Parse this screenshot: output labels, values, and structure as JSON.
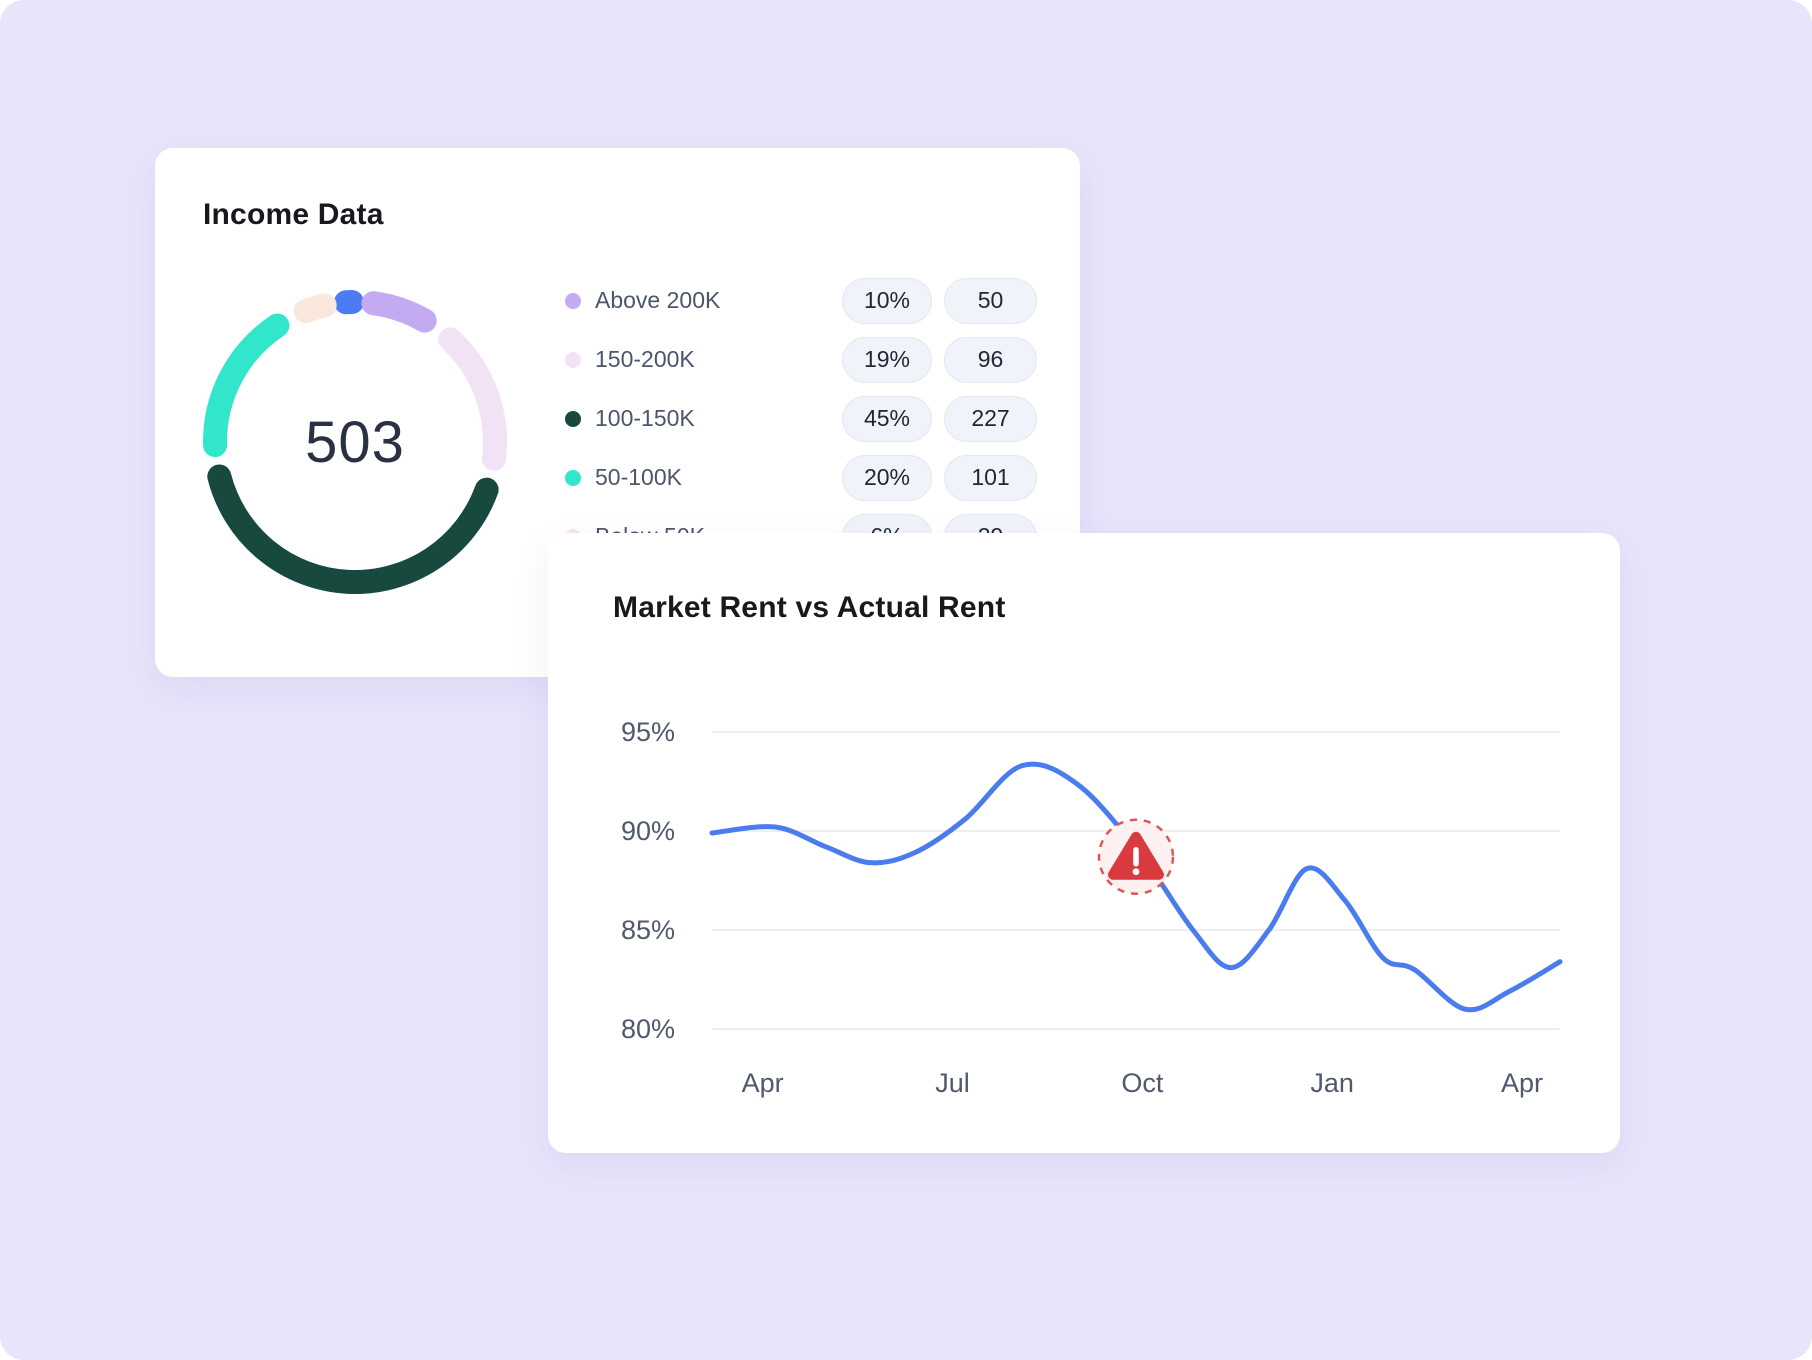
{
  "background": {
    "color": "#E8E4FB"
  },
  "income_card": {
    "title": "Income Data",
    "total": "503",
    "legend": [
      {
        "label": "Above 200K",
        "percent": "10%",
        "count": "50",
        "color": "#C3AAF2"
      },
      {
        "label": "150-200K",
        "percent": "19%",
        "count": "96",
        "color": "#F2E2F5"
      },
      {
        "label": "100-150K",
        "percent": "45%",
        "count": "227",
        "color": "#17493F"
      },
      {
        "label": "50-100K",
        "percent": "20%",
        "count": "101",
        "color": "#31E6CA"
      },
      {
        "label": "Below 50K",
        "percent": "6%",
        "count": "29",
        "color": "#FAE8DC"
      }
    ]
  },
  "rent_card": {
    "title": "Market Rent vs Actual Rent"
  },
  "chart_data": [
    {
      "type": "pie",
      "variant": "donut",
      "title": "Income Data",
      "center_label": "503",
      "start_angle_deg": -6,
      "segments": [
        {
          "name": "highlight-marker",
          "value": 2,
          "color": "#4D7BF3"
        },
        {
          "name": "Above 200K",
          "value": 10,
          "color": "#C3AAF2"
        },
        {
          "name": "150-200K",
          "value": 19,
          "color": "#F2E2F5"
        },
        {
          "name": "100-150K",
          "value": 45,
          "color": "#17493F"
        },
        {
          "name": "50-100K",
          "value": 20,
          "color": "#31E6CA"
        },
        {
          "name": "Below 50K",
          "value": 6,
          "color": "#FAE8DC"
        }
      ]
    },
    {
      "type": "line",
      "title": "Market Rent vs Actual Rent",
      "line_color": "#4A7CF0",
      "grid": true,
      "x_tick_labels": [
        "Apr",
        "Jul",
        "Oct",
        "Jan",
        "Apr"
      ],
      "x_tick_months": [
        0,
        3,
        6,
        9,
        12
      ],
      "x_domain_months": [
        -0.8,
        12.6
      ],
      "y_ticks_percent": [
        95,
        90,
        85,
        80
      ],
      "ylim_percent": [
        80,
        95
      ],
      "points_month_percent": [
        [
          -0.8,
          89.9
        ],
        [
          0.2,
          90.2
        ],
        [
          1.0,
          89.2
        ],
        [
          1.7,
          88.4
        ],
        [
          2.4,
          88.9
        ],
        [
          3.2,
          90.6
        ],
        [
          4.1,
          93.3
        ],
        [
          5.0,
          92.3
        ],
        [
          6.0,
          88.7
        ],
        [
          6.8,
          85.0
        ],
        [
          7.4,
          83.1
        ],
        [
          8.0,
          85.0
        ],
        [
          8.6,
          88.1
        ],
        [
          9.2,
          86.5
        ],
        [
          9.8,
          83.6
        ],
        [
          10.3,
          83.0
        ],
        [
          11.1,
          81.0
        ],
        [
          11.8,
          81.9
        ],
        [
          12.6,
          83.4
        ]
      ],
      "alert_marker": {
        "month": 5.9,
        "value_percent": 88.7,
        "color": "#D83A3F"
      }
    }
  ]
}
